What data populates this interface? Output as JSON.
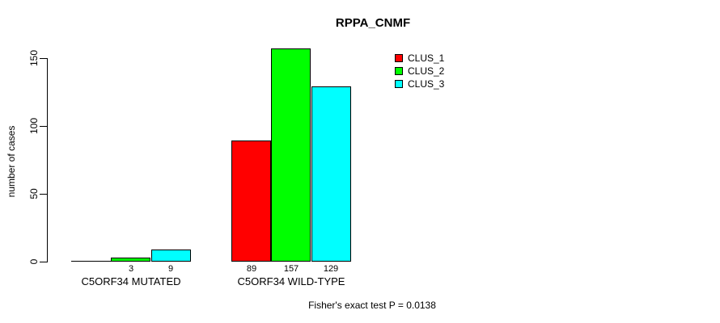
{
  "chart_data": {
    "type": "bar",
    "title": "RPPA_CNMF",
    "xlabel": "",
    "ylabel": "number of cases",
    "categories": [
      "C5ORF34 MUTATED",
      "C5ORF34 WILD-TYPE"
    ],
    "series": [
      {
        "name": "CLUS_1",
        "color": "#ff0000",
        "values": [
          0,
          89
        ],
        "value_labels": [
          "",
          "89"
        ]
      },
      {
        "name": "CLUS_2",
        "color": "#00ff00",
        "values": [
          3,
          157
        ],
        "value_labels": [
          "3",
          "157"
        ]
      },
      {
        "name": "CLUS_3",
        "color": "#00ffff",
        "values": [
          9,
          129
        ],
        "value_labels": [
          "9",
          "129"
        ]
      }
    ],
    "yticks": [
      0,
      50,
      100,
      150
    ],
    "ylim": [
      0,
      160
    ],
    "grid": false,
    "legend": {
      "position": "top-right",
      "entries": [
        "CLUS_1",
        "CLUS_2",
        "CLUS_3"
      ]
    },
    "annotation": "Fisher's exact test P = 0.0138",
    "colors": {
      "bar_border": "#000000",
      "text": "#000000",
      "background": "#ffffff"
    }
  }
}
